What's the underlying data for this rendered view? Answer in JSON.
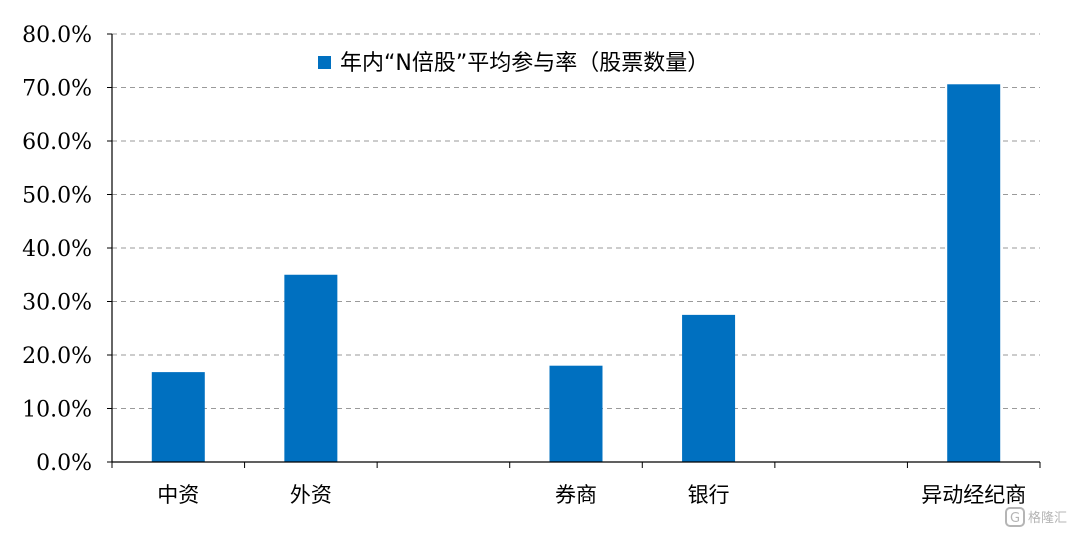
{
  "chart_data": {
    "type": "bar",
    "title": "",
    "xlabel": "",
    "ylabel": "",
    "legend": {
      "label": "年内“N倍股”平均参与率（股票数量）",
      "placement": "top"
    },
    "categories": [
      "中资",
      "外资",
      "",
      "券商",
      "银行",
      "",
      "异动经纪商"
    ],
    "series": [
      {
        "name": "年内“N倍股”平均参与率（股票数量）",
        "color": "#0070c0",
        "values": [
          16.8,
          35.0,
          null,
          18.0,
          27.5,
          null,
          70.6
        ]
      }
    ],
    "ylim": [
      0,
      80
    ],
    "yticks": [
      "0.0%",
      "10.0%",
      "20.0%",
      "30.0%",
      "40.0%",
      "50.0%",
      "60.0%",
      "70.0%",
      "80.0%"
    ],
    "grid": {
      "horizontal": true,
      "style": "dashed"
    },
    "bar_color": "#0070c0"
  },
  "watermark": {
    "text": "格隆汇"
  }
}
